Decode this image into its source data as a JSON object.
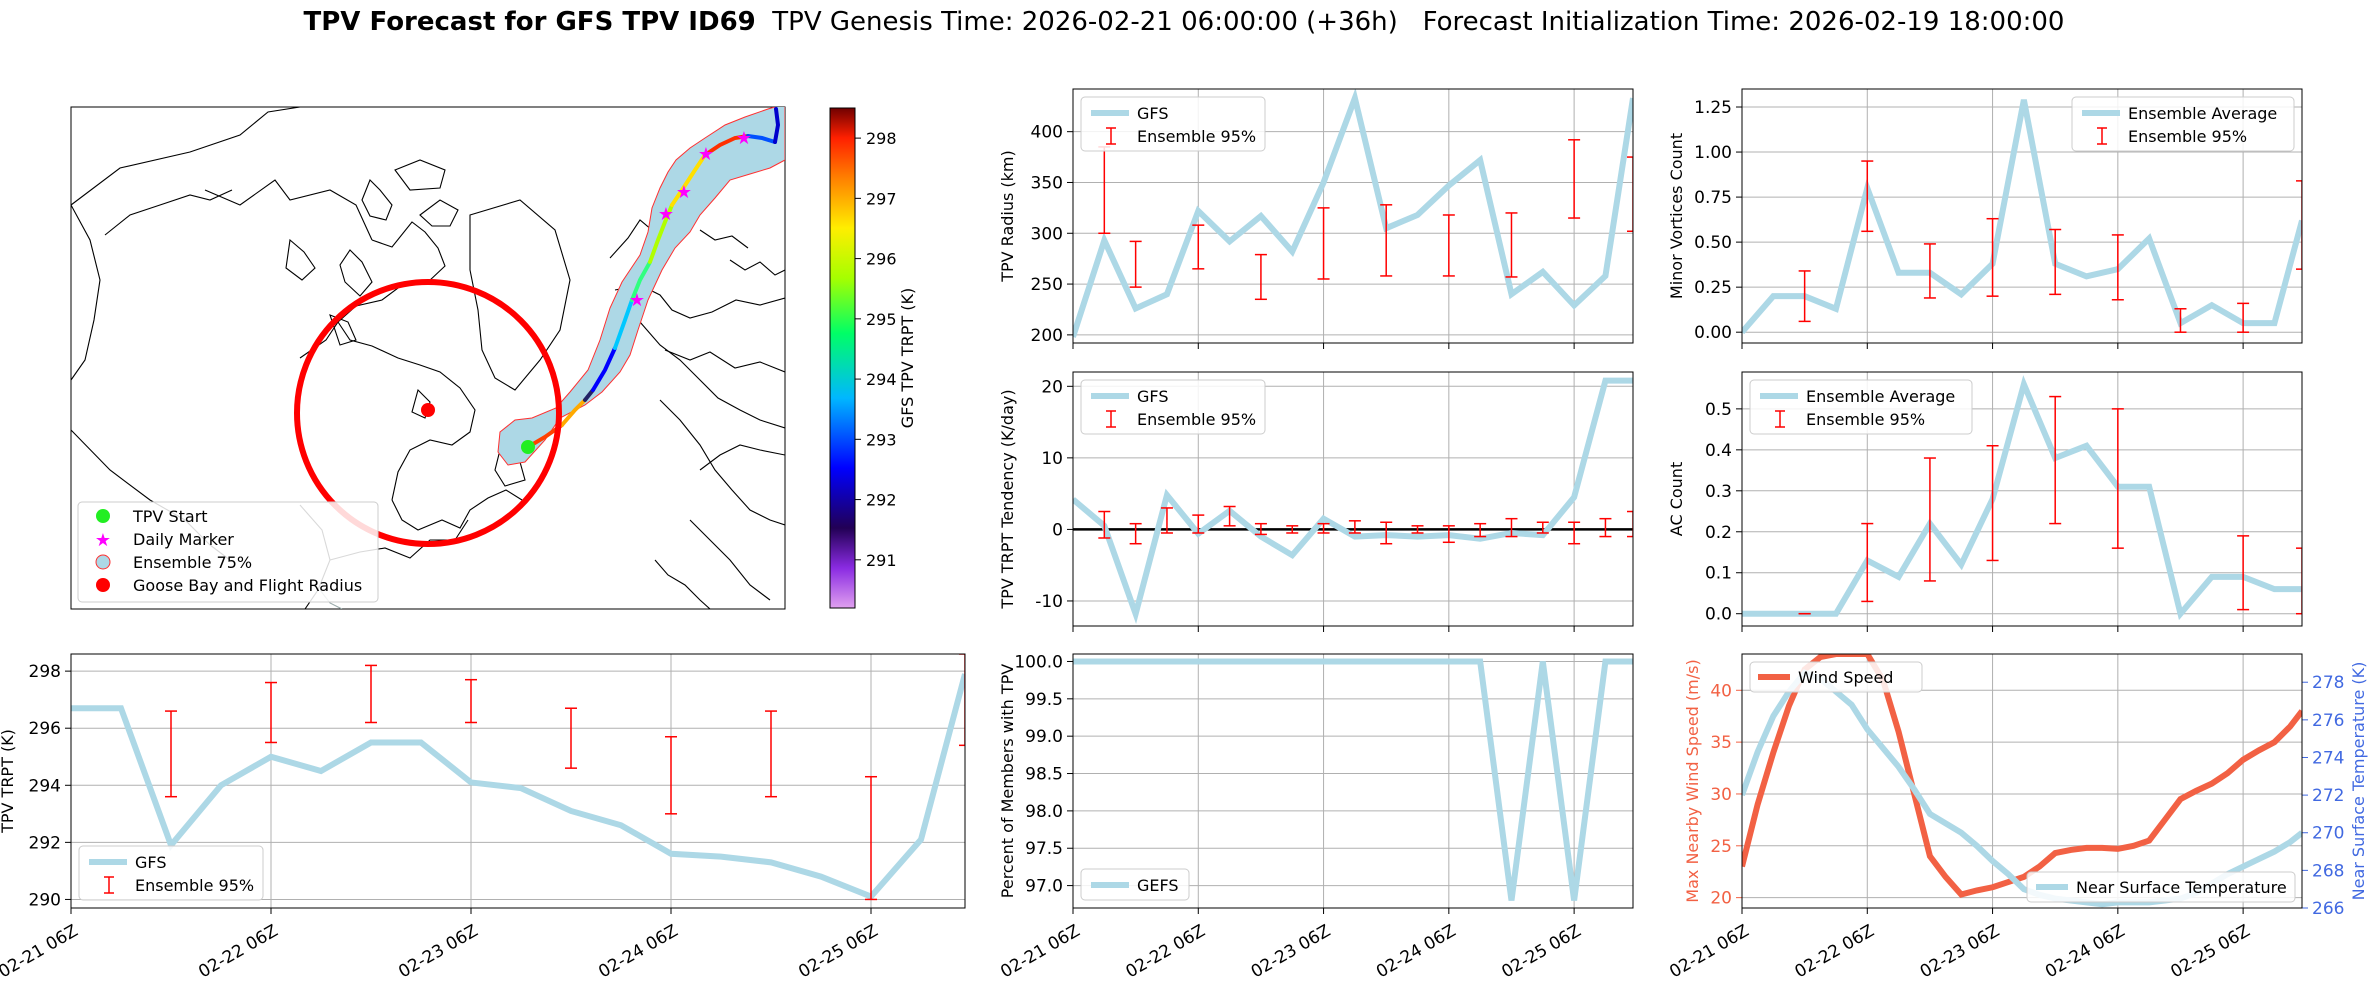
{
  "figure": {
    "title_bold": "TPV Forecast for GFS TPV ID69",
    "title_rest": "  TPV Genesis Time: 2026-02-21 06:00:00 (+36h)   Forecast Initialization Time: 2026-02-19 18:00:00"
  },
  "colors": {
    "gfs": "#add8e6",
    "ensemble": "#ff0000",
    "wind": "#f26144",
    "temp_axis": "#4169e1",
    "grid": "#b0b0b0"
  },
  "map": {
    "colorbar_label": "GFS TPV TRPT (K)",
    "colorbar_ticks": [
      291,
      292,
      293,
      294,
      295,
      296,
      297,
      298
    ],
    "colorbar_range": [
      290.2,
      298.5
    ],
    "legend": [
      "TPV Start",
      "Daily Marker",
      "Ensemble 75%",
      "Goose Bay and Flight Radius"
    ]
  },
  "chart_data": [
    {
      "id": "radius",
      "type": "line",
      "title": "",
      "ylabel": "TPV Radius (km)",
      "ylim": [
        192,
        442
      ],
      "yticks": [
        200,
        250,
        300,
        350,
        400
      ],
      "xlim": [
        0,
        4.47
      ],
      "legend": [
        "GFS",
        "Ensemble 95%"
      ],
      "legend_pos": "top-left",
      "gfs_x": [
        0,
        0.25,
        0.5,
        0.75,
        1,
        1.25,
        1.5,
        1.75,
        2,
        2.25,
        2.5,
        2.75,
        3,
        3.25,
        3.5,
        3.75,
        4,
        4.25,
        4.47
      ],
      "gfs_y": [
        198,
        293,
        226,
        240,
        322,
        292,
        317,
        282,
        350,
        433,
        305,
        318,
        347,
        372,
        240,
        262,
        229,
        258,
        433
      ],
      "err_x": [
        0.25,
        0.5,
        1,
        1.5,
        2,
        2.5,
        3,
        3.5,
        4,
        4.47
      ],
      "err_lo": [
        300,
        247,
        265,
        235,
        255,
        258,
        258,
        257,
        315,
        302
      ],
      "err_hi": [
        385,
        292,
        308,
        279,
        325,
        328,
        318,
        320,
        392,
        375
      ]
    },
    {
      "id": "minor",
      "type": "line",
      "ylabel": "Minor Vortices Count",
      "ylim": [
        -0.06,
        1.35
      ],
      "yticks": [
        0.0,
        0.25,
        0.5,
        0.75,
        1.0,
        1.25
      ],
      "ytick_labels": [
        "0.00",
        "0.25",
        "0.50",
        "0.75",
        "1.00",
        "1.25"
      ],
      "xlim": [
        0,
        4.47
      ],
      "legend": [
        "Ensemble Average",
        "Ensemble 95%"
      ],
      "legend_pos": "top-right",
      "gfs_x": [
        0,
        0.25,
        0.5,
        0.75,
        1,
        1.25,
        1.5,
        1.75,
        2,
        2.25,
        2.5,
        2.75,
        3,
        3.25,
        3.5,
        3.75,
        4,
        4.25,
        4.47
      ],
      "gfs_y": [
        0.0,
        0.2,
        0.2,
        0.13,
        0.8,
        0.33,
        0.33,
        0.21,
        0.38,
        1.29,
        0.38,
        0.31,
        0.35,
        0.52,
        0.05,
        0.15,
        0.05,
        0.05,
        0.62
      ],
      "err_x": [
        0.5,
        1,
        1.5,
        2,
        2.5,
        3,
        3.5,
        4,
        4.47
      ],
      "err_lo": [
        0.06,
        0.56,
        0.19,
        0.2,
        0.21,
        0.18,
        0.0,
        0.0,
        0.35
      ],
      "err_hi": [
        0.34,
        0.95,
        0.49,
        0.63,
        0.57,
        0.54,
        0.13,
        0.16,
        0.84
      ]
    },
    {
      "id": "tendency",
      "type": "line",
      "ylabel": "TPV TRPT Tendency (K/day)",
      "ylim": [
        -13.5,
        22
      ],
      "yticks": [
        -10,
        0,
        10,
        20
      ],
      "xlim": [
        0,
        4.47
      ],
      "legend": [
        "GFS",
        "Ensemble 95%"
      ],
      "legend_pos": "top-left",
      "gfs_x": [
        0,
        0.25,
        0.5,
        0.75,
        1,
        1.25,
        1.5,
        1.75,
        2,
        2.25,
        2.5,
        2.75,
        3,
        3.25,
        3.5,
        3.75,
        4,
        4.25,
        4.47
      ],
      "gfs_y": [
        4.2,
        0.5,
        -11.8,
        4.8,
        -0.6,
        2.6,
        -1,
        -3.6,
        1.5,
        -1,
        -0.8,
        -1,
        -0.8,
        -1.3,
        -0.5,
        -0.8,
        4.5,
        20.8,
        20.8
      ],
      "err_x": [
        0.25,
        0.5,
        0.75,
        1,
        1.25,
        1.5,
        1.75,
        2,
        2.25,
        2.5,
        2.75,
        3,
        3.25,
        3.5,
        3.75,
        4,
        4.25,
        4.47
      ],
      "err_lo": [
        -1.2,
        -2,
        -0.5,
        -0.5,
        0.5,
        -0.7,
        -0.5,
        -0.5,
        -0.5,
        -2,
        -0.5,
        -1.8,
        -1,
        -1,
        -0.5,
        -2,
        -1,
        -1
      ],
      "err_hi": [
        2.5,
        0.8,
        3,
        2,
        3.2,
        0.8,
        0.5,
        0.8,
        1.2,
        1,
        0.5,
        0.5,
        0.8,
        1.5,
        1,
        1,
        1.5,
        2.5
      ],
      "zero_line": true
    },
    {
      "id": "ac",
      "type": "line",
      "ylabel": "AC Count",
      "ylim": [
        -0.03,
        0.59
      ],
      "yticks": [
        0.0,
        0.1,
        0.2,
        0.3,
        0.4,
        0.5
      ],
      "ytick_labels": [
        "0.0",
        "0.1",
        "0.2",
        "0.3",
        "0.4",
        "0.5"
      ],
      "xlim": [
        0,
        4.47
      ],
      "legend": [
        "Ensemble Average",
        "Ensemble 95%"
      ],
      "legend_pos": "top-left",
      "gfs_x": [
        0,
        0.25,
        0.5,
        0.75,
        1,
        1.25,
        1.5,
        1.75,
        2,
        2.25,
        2.5,
        2.75,
        3,
        3.25,
        3.5,
        3.75,
        4,
        4.25,
        4.47
      ],
      "gfs_y": [
        0,
        0,
        0,
        0,
        0.13,
        0.09,
        0.22,
        0.12,
        0.28,
        0.56,
        0.38,
        0.41,
        0.31,
        0.31,
        0,
        0.09,
        0.09,
        0.06,
        0.06
      ],
      "err_x": [
        0.5,
        1,
        1.5,
        2,
        2.5,
        3,
        4,
        4.47
      ],
      "err_lo": [
        0,
        0.03,
        0.08,
        0.13,
        0.22,
        0.16,
        0.01,
        0
      ],
      "err_hi": [
        0,
        0.22,
        0.38,
        0.41,
        0.53,
        0.5,
        0.19,
        0.16
      ]
    },
    {
      "id": "trpt",
      "type": "line",
      "ylabel": "TPV TRPT (K)",
      "ylim": [
        289.7,
        298.6
      ],
      "yticks": [
        290,
        292,
        294,
        296,
        298
      ],
      "xlim": [
        0,
        4.47
      ],
      "xticks": [
        0,
        1,
        2,
        3,
        4
      ],
      "xtick_labels": [
        "02-21 06Z",
        "02-22 06Z",
        "02-23 06Z",
        "02-24 06Z",
        "02-25 06Z"
      ],
      "legend": [
        "GFS",
        "Ensemble 95%"
      ],
      "legend_pos": "bottom-left",
      "gfs_x": [
        0,
        0.25,
        0.5,
        0.75,
        1,
        1.25,
        1.5,
        1.75,
        2,
        2.25,
        2.5,
        2.75,
        3,
        3.25,
        3.5,
        3.75,
        4,
        4.25,
        4.47
      ],
      "gfs_y": [
        296.7,
        296.7,
        291.9,
        294.0,
        295.0,
        294.5,
        295.5,
        295.5,
        294.1,
        293.9,
        293.1,
        292.6,
        291.6,
        291.5,
        291.3,
        290.8,
        290.1,
        292.1,
        297.9
      ],
      "err_x": [
        0.5,
        1,
        1.5,
        2,
        2.5,
        3,
        3.5,
        4,
        4.47
      ],
      "err_lo": [
        293.6,
        295.5,
        296.2,
        296.2,
        294.6,
        293.0,
        293.6,
        290.0,
        295.4
      ],
      "err_hi": [
        296.6,
        297.6,
        298.2,
        297.7,
        296.7,
        295.7,
        296.6,
        294.3,
        298.6
      ]
    },
    {
      "id": "percent",
      "type": "line",
      "ylabel": "Percent of Members with TPV",
      "ylim": [
        96.7,
        100.1
      ],
      "yticks": [
        97.0,
        97.5,
        98.0,
        98.5,
        99.0,
        99.5,
        100.0
      ],
      "ytick_labels": [
        "97.0",
        "97.5",
        "98.0",
        "98.5",
        "99.0",
        "99.5",
        "100.0"
      ],
      "xlim": [
        0,
        4.47
      ],
      "xticks": [
        0,
        1,
        2,
        3,
        4
      ],
      "xtick_labels": [
        "02-21 06Z",
        "02-22 06Z",
        "02-23 06Z",
        "02-24 06Z",
        "02-25 06Z"
      ],
      "legend": [
        "GEFS"
      ],
      "legend_pos": "bottom-left",
      "gfs_x": [
        0,
        0.25,
        0.5,
        0.75,
        1,
        1.25,
        1.5,
        1.75,
        2,
        2.25,
        2.5,
        2.75,
        3,
        3.25,
        3.5,
        3.75,
        4,
        4.25,
        4.47
      ],
      "gfs_y": [
        100,
        100,
        100,
        100,
        100,
        100,
        100,
        100,
        100,
        100,
        100,
        100,
        100,
        100,
        96.8,
        100,
        96.8,
        100,
        100
      ]
    },
    {
      "id": "wind",
      "type": "line",
      "ylabel": "Max Nearby Wind Speed (m/s)",
      "ylabel2": "Near Surface Temperature (K)",
      "ylim": [
        19,
        43.5
      ],
      "yticks": [
        20,
        25,
        30,
        35,
        40
      ],
      "ylim2": [
        266,
        279.5
      ],
      "yticks2": [
        266,
        268,
        270,
        272,
        274,
        276,
        278
      ],
      "xlim": [
        0,
        4.47
      ],
      "xticks": [
        0,
        1,
        2,
        3,
        4
      ],
      "xtick_labels": [
        "02-21 06Z",
        "02-22 06Z",
        "02-23 06Z",
        "02-24 06Z",
        "02-25 06Z"
      ],
      "legend": [
        "Wind Speed"
      ],
      "legend2": [
        "Near Surface Temperature"
      ],
      "wind_x": [
        0,
        0.125,
        0.25,
        0.375,
        0.5,
        0.625,
        0.75,
        0.875,
        1,
        1.125,
        1.25,
        1.375,
        1.5,
        1.625,
        1.75,
        1.875,
        2,
        2.125,
        2.25,
        2.375,
        2.5,
        2.625,
        2.75,
        2.875,
        3,
        3.125,
        3.25,
        3.375,
        3.5,
        3.625,
        3.75,
        3.875,
        4,
        4.125,
        4.25,
        4.375,
        4.47
      ],
      "wind_y": [
        23,
        29,
        34,
        38.5,
        42,
        43.2,
        43.5,
        43.5,
        43.5,
        41,
        36,
        30,
        24,
        22,
        20.3,
        20.7,
        21,
        21.5,
        22,
        23,
        24.3,
        24.6,
        24.8,
        24.8,
        24.7,
        25,
        25.5,
        27.5,
        29.5,
        30.3,
        31,
        32,
        33.3,
        34.2,
        35,
        36.5,
        38
      ],
      "temp_x": [
        0,
        0.125,
        0.25,
        0.375,
        0.5,
        0.625,
        0.75,
        0.875,
        1,
        1.125,
        1.25,
        1.375,
        1.5,
        1.625,
        1.75,
        1.875,
        2,
        2.125,
        2.25,
        2.375,
        2.5,
        2.625,
        2.75,
        2.875,
        3,
        3.125,
        3.25,
        3.375,
        3.5,
        3.625,
        3.75,
        3.875,
        4,
        4.125,
        4.25,
        4.375,
        4.47
      ],
      "temp_y": [
        272,
        274.3,
        276.2,
        277.5,
        278.5,
        278.2,
        277.5,
        276.8,
        275.5,
        274.5,
        273.5,
        272.3,
        271,
        270.5,
        270,
        269.3,
        268.5,
        267.8,
        267,
        266.7,
        266.5,
        266.4,
        266.3,
        266.2,
        266.3,
        266.3,
        266.3,
        266.4,
        266.5,
        266.8,
        267.3,
        267.8,
        268.2,
        268.6,
        269,
        269.5,
        270
      ]
    }
  ]
}
